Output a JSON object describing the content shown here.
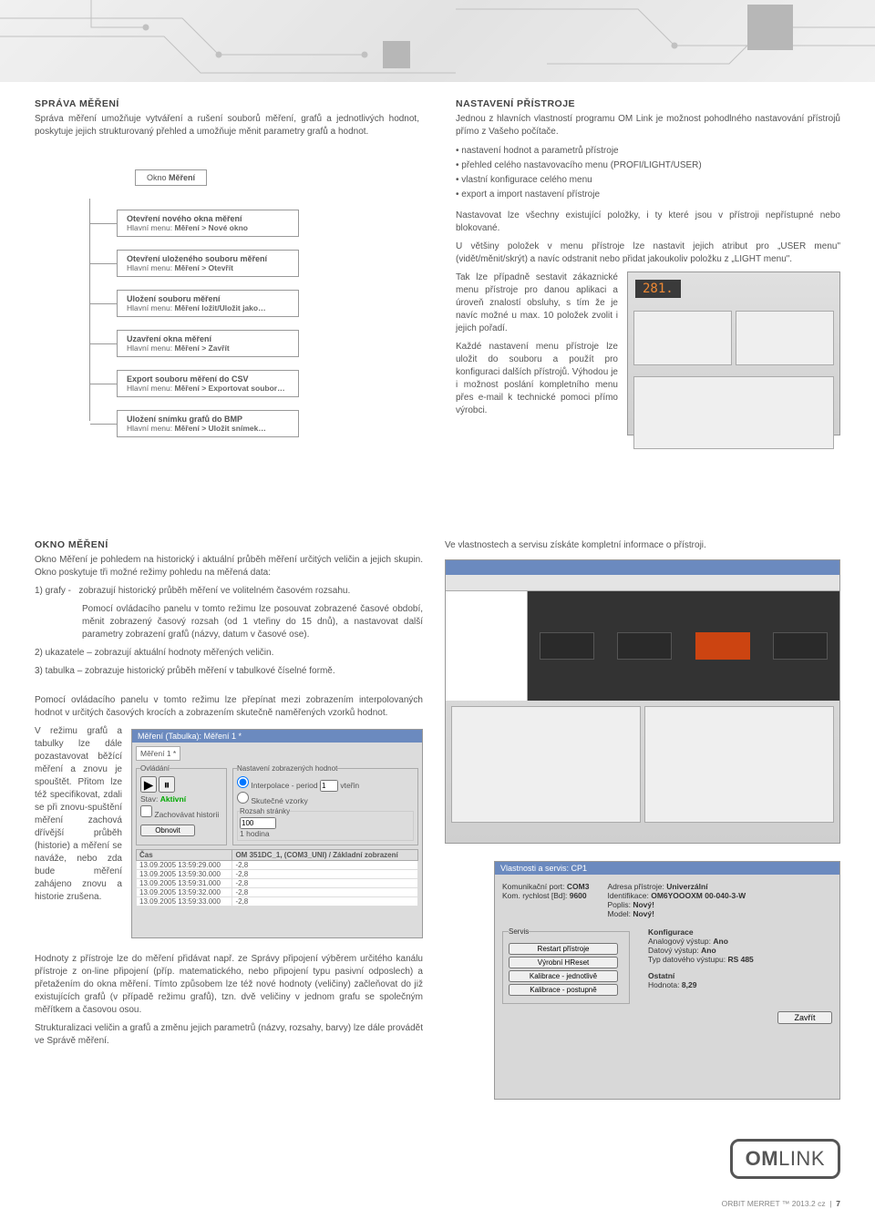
{
  "section1": {
    "title": "SPRÁVA MĚŘENÍ",
    "intro": "Správa měření umožňuje vytváření a rušení souborů měření, grafů a jednotlivých hodnot, poskytuje jejich strukturovaný přehled a umožňuje měnit parametry grafů a hodnot."
  },
  "tree": {
    "root": "Okno Měření",
    "root_bold": "Měření",
    "nodes": [
      {
        "t1": "Otevření nového okna měření",
        "t2_prefix": "Hlavní menu: ",
        "t2_bold": "Měření > Nové okno"
      },
      {
        "t1": "Otevření uloženého souboru měření",
        "t2_prefix": "Hlavní menu: ",
        "t2_bold": "Měření > Otevřít"
      },
      {
        "t1": "Uložení souboru měření",
        "t2_prefix": "Hlavní menu: ",
        "t2_bold": "Měření ložit/Uložit jako…"
      },
      {
        "t1": "Uzavření okna měření",
        "t2_prefix": "Hlavní menu: ",
        "t2_bold": "Měření > Zavřít"
      },
      {
        "t1": "Export souboru měření do CSV",
        "t2_prefix": "Hlavní menu: ",
        "t2_bold": "Měření > Exportovat soubor…"
      },
      {
        "t1": "Uložení snímku grafů do BMP",
        "t2_prefix": "Hlavní menu: ",
        "t2_bold": "Měření > Uložit snímek…"
      }
    ]
  },
  "section2": {
    "title": "NASTAVENÍ PŘÍSTROJE",
    "intro": "Jednou z hlavních vlastností programu OM Link je možnost pohodlného nastavování přístrojů přímo z Vašeho počítače.",
    "bullets": [
      "nastavení hodnot a parametrů přístroje",
      "přehled celého nastavovacího menu (PROFI/LIGHT/USER)",
      "vlastní konfigurace celého menu",
      "export a import nastavení přístroje"
    ],
    "p1": "Nastavovat lze všechny existující položky, i ty které jsou v přístroji nepřístupné nebo blokované.",
    "p2": "U většiny položek v menu přístroje lze nastavit jejich atribut pro „USER menu\" (vidět/měnit/skrýt) a navíc odstranit nebo přidat jakoukoliv položku z „LIGHT menu\".",
    "p3": "Tak lze případně sestavit zákaznické menu přístroje pro danou aplikaci a úroveň znalostí obsluhy, s tím že je navíc možné u max. 10 položek zvolit i jejich pořadí.",
    "p4": "Každé nastavení menu přístroje lze uložit do souboru a použít pro konfiguraci dalších přístrojů. Výhodou je i možnost poslání kompletního menu přes e-mail k technické pomoci přímo výrobci.",
    "display_value": "281."
  },
  "section3": {
    "title": "OKNO MĚŘENÍ",
    "p1": "Okno Měření je pohledem na historický i aktuální průběh měření určitých veličin a jejich skupin. Okno poskytuje tři možné režimy pohledu na měřená data:",
    "l1a": "1) grafy -",
    "l1b": "zobrazují historický průběh měření ve volitelném časovém rozsahu.",
    "l1c": "Pomocí ovládacího panelu v tomto režimu lze posouvat zobrazené časové období, měnit zobrazený časový rozsah (od 1 vteřiny do 15 dnů), a nastavovat další parametry zobrazení grafů (názvy, datum v časové ose).",
    "l2": "2) ukazatele – zobrazují aktuální hodnoty měřených veličin.",
    "l3": "3) tabulka – zobrazuje historický průběh měření v tabulkové číselné formě.",
    "p5": "Pomocí ovládacího panelu v tomto režimu lze přepínat mezi zobrazením interpolovaných hodnot v určitých časových krocích a zobrazením skutečně naměřených vzorků hodnot.",
    "p6": "V režimu grafů a tabulky lze dále pozastavovat běžící měření a znovu je spouštět. Přitom lze též specifikovat, zdali se při znovu-spuštění měření zachová dřívější průběh (historie) a měření se naváže, nebo zda bude měření zahájeno znovu a historie zrušena.",
    "p7": "Hodnoty z přístroje lze do měření přidávat např. ze Správy připojení výběrem určitého kanálu přístroje z on-line připojení (příp. matematického, nebo připojení typu pasivní odposlech) a přetažením do okna měření. Tímto způsobem lze též nové hodnoty (veličiny) začleňovat do již existujících grafů (v případě režimu grafů), tzn. dvě veličiny v jednom grafu se společným měřítkem a časovou osou.",
    "p8": "Strukturalizaci veličin a grafů a změnu jejich parametrů (názvy, rozsahy, barvy) lze dále provádět ve Správě měření."
  },
  "section4": {
    "intro": "Ve vlastnostech a servisu získáte kompletní informace o přístroji.",
    "window_title": "Měření (Tabulka): Měření 1 *",
    "toolbar": {
      "tab": "Měření 1 *"
    },
    "panel_ovladani": "Ovládání",
    "stav_label": "Stav:",
    "stav_value": "Aktivní",
    "btn_obnovit": "Obnovit",
    "chk_hist": "Zachovávat historii",
    "panel_nast": "Nastavení zobrazených hodnot",
    "radio_interp": "Interpolace - period",
    "radio_vzorky": "Skutečné vzorky",
    "interp_val": "1",
    "interp_unit": "vteřin",
    "rozsah_label": "Rozsah stránky",
    "rozsah_val": "100",
    "jednotka": "1 hodina",
    "col_cas": "Čas",
    "col_val": "OM 351DC_1, (COM3_UNI) / Základní zobrazení",
    "rows": [
      [
        "13.09.2005 13:59:29.000",
        "-2,8"
      ],
      [
        "13.09.2005 13:59:30.000",
        "-2,8"
      ],
      [
        "13.09.2005 13:59:31.000",
        "-2,8"
      ],
      [
        "13.09.2005 13:59:32.000",
        "-2,8"
      ],
      [
        "13.09.2005 13:59:33.000",
        "-2,8"
      ]
    ]
  },
  "props_window": {
    "title": "Vlastnosti a servis: CP1",
    "kom_port_label": "Komunikační port:",
    "kom_port": "COM3",
    "kom_rychlost_label": "Kom. rychlost [Bd]:",
    "kom_rychlost": "9600",
    "adresa_label": "Adresa přístroje:",
    "adresa": "Univerzální",
    "ident_label": "Identifikace:",
    "ident": "OM6YOOOXM    00-040-3-W",
    "poplis_label": "Poplis:",
    "poplis": "Nový!",
    "model_label": "Model:",
    "model": "Nový!",
    "konfig": "Konfigurace",
    "an_label": "Analogový výstup:",
    "an": "Ano",
    "dat_label": "Datový výstup:",
    "dat": "Ano",
    "typ_label": "Typ datového výstupu:",
    "typ": "RS 485",
    "servis": "Servis",
    "btn_restart": "Restart přístroje",
    "btn_unblock": "Výrobní HReset",
    "btn_kal_jed": "Kalibrace - jednotlivě",
    "btn_kal_post": "Kalibrace - postupně",
    "ost": "Ostatní",
    "hodn_label": "Hodnota:",
    "hodn": "8,29",
    "btn_zavrit": "Zavřít"
  },
  "logo": {
    "bold": "OM",
    "thin": "LINK"
  },
  "footer": {
    "text": "ORBIT MERRET ™ 2013.2 cz",
    "sep": "|",
    "page": "7"
  }
}
